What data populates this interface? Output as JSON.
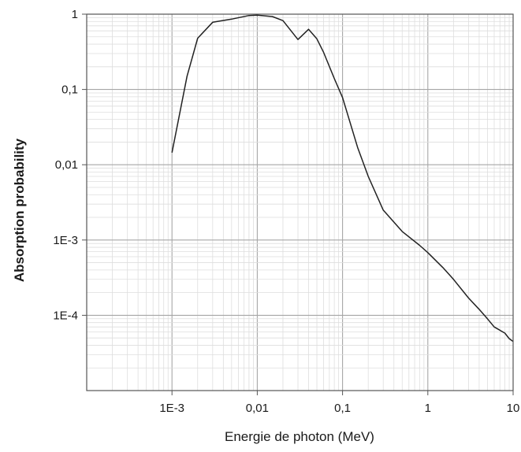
{
  "chart_data": {
    "type": "line",
    "xlabel": "Energie de photon (MeV)",
    "ylabel": "Absorption probability",
    "x_scale": "log",
    "y_scale": "log",
    "xlim": [
      0.0001,
      10
    ],
    "ylim": [
      1e-05,
      1
    ],
    "grid": true,
    "x_ticks": [
      {
        "value": 0.001,
        "label": "1E-3"
      },
      {
        "value": 0.01,
        "label": "0,01"
      },
      {
        "value": 0.1,
        "label": "0,1"
      },
      {
        "value": 1,
        "label": "1"
      },
      {
        "value": 10,
        "label": "10"
      }
    ],
    "y_ticks": [
      {
        "value": 1,
        "label": "1"
      },
      {
        "value": 0.1,
        "label": "0,1"
      },
      {
        "value": 0.01,
        "label": "0,01"
      },
      {
        "value": 0.001,
        "label": "1E-3"
      },
      {
        "value": 0.0001,
        "label": "1E-4"
      }
    ],
    "line_color": "#222222",
    "series": [
      {
        "x": [
          0.001,
          0.0015,
          0.002,
          0.003,
          0.005,
          0.008,
          0.01,
          0.015,
          0.02,
          0.03,
          0.04,
          0.05,
          0.06,
          0.08,
          0.1,
          0.15,
          0.2,
          0.3,
          0.5,
          0.8,
          1,
          1.5,
          2,
          3,
          4,
          5,
          6,
          8,
          9,
          10
        ],
        "y": [
          0.0145,
          0.15,
          0.48,
          0.78,
          0.86,
          0.96,
          0.97,
          0.93,
          0.82,
          0.46,
          0.63,
          0.47,
          0.31,
          0.14,
          0.078,
          0.017,
          0.007,
          0.0025,
          0.0013,
          0.00085,
          0.00068,
          0.00043,
          0.0003,
          0.00017,
          0.00012,
          9e-05,
          7e-05,
          5.8e-05,
          4.9e-05,
          4.5e-05
        ]
      }
    ]
  }
}
